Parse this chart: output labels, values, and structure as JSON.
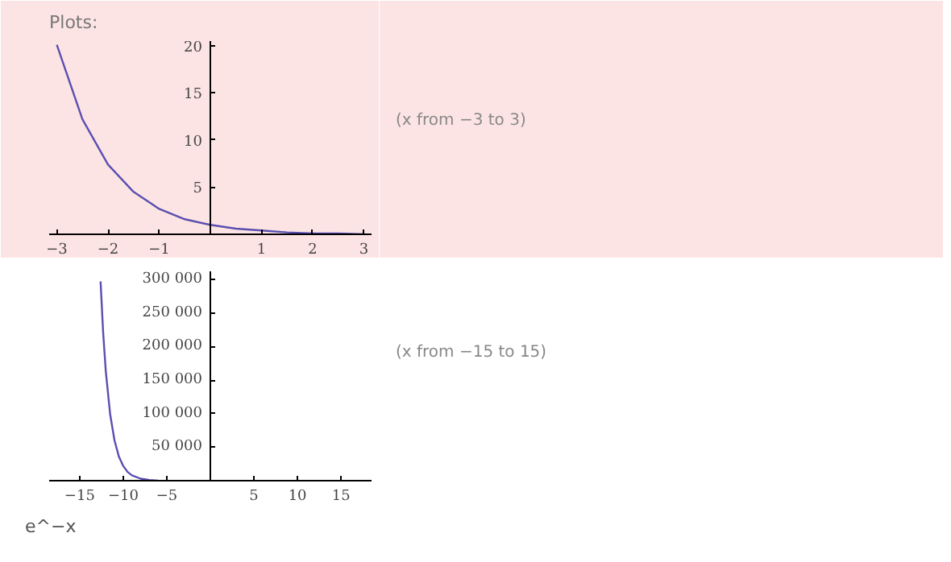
{
  "chart_data": [
    {
      "type": "line",
      "title": "Plots:",
      "annotations": [
        "(x from −3 to 3)"
      ],
      "x": [
        -3,
        -2.5,
        -2,
        -1.5,
        -1,
        -0.5,
        0,
        0.5,
        1,
        1.5,
        2,
        2.5,
        3
      ],
      "series": [
        {
          "color": "#5a4fb0",
          "values": [
            20.1,
            12.2,
            7.4,
            4.5,
            2.7,
            1.6,
            1.0,
            0.6,
            0.4,
            0.2,
            0.1,
            0.1,
            0.0
          ]
        }
      ],
      "xlim": [
        -3.15,
        3.15
      ],
      "ylim": [
        0,
        20.5
      ],
      "xticks": [
        -3,
        -2,
        -1,
        1,
        2,
        3
      ],
      "yticks": [
        5,
        10,
        15,
        20
      ],
      "grid": false
    },
    {
      "type": "line",
      "annotations": [
        "(x from −15 to 15)",
        "e^−x"
      ],
      "x": [
        -12.6,
        -12.3,
        -12,
        -11.5,
        -11,
        -10.5,
        -10,
        -9.5,
        -9,
        -8,
        -7,
        -6
      ],
      "series": [
        {
          "color": "#5a4fb0",
          "values": [
            297000,
            220000,
            163000,
            99000,
            60000,
            36000,
            22000,
            13000,
            8000,
            3000,
            1000,
            0
          ]
        }
      ],
      "xlim": [
        -18.5,
        18.5
      ],
      "ylim": [
        0,
        312000
      ],
      "xticks": [
        -15,
        -10,
        -5,
        5,
        10,
        15
      ],
      "yticks": [
        {
          "value": 50000,
          "label": "50 000"
        },
        {
          "value": 100000,
          "label": "100 000"
        },
        {
          "value": 150000,
          "label": "150 000"
        },
        {
          "value": 200000,
          "label": "200 000"
        },
        {
          "value": 250000,
          "label": "250 000"
        },
        {
          "value": 300000,
          "label": "300 000"
        }
      ],
      "grid": false
    }
  ]
}
